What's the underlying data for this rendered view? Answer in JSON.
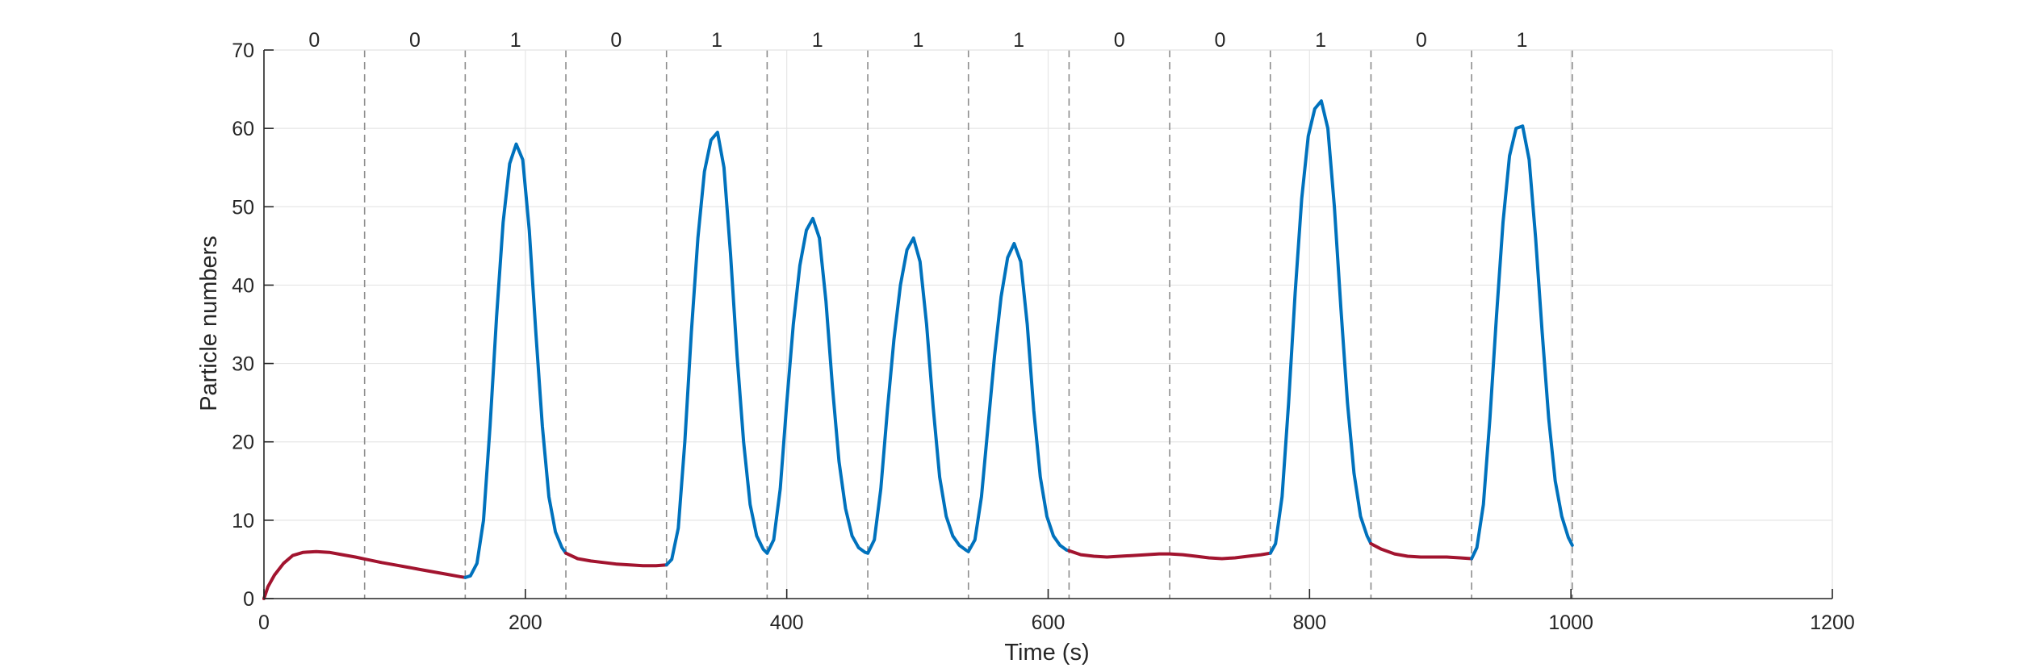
{
  "chart_data": {
    "type": "line",
    "title": "",
    "xlabel": "Time (s)",
    "ylabel": "Particle numbers",
    "xlim": [
      0,
      1200
    ],
    "ylim": [
      0,
      70
    ],
    "xticks": [
      "0",
      "200",
      "400",
      "600",
      "800",
      "1000",
      "1200"
    ],
    "yticks": [
      "0",
      "10",
      "20",
      "30",
      "40",
      "50",
      "60",
      "70"
    ],
    "grid": true,
    "colors": {
      "state_0": "#A2142F",
      "state_1": "#0072BD",
      "grid": "#e6e6e6",
      "boundary": "#8c8c8c",
      "axis": "#262626"
    },
    "interval_width": 77,
    "boundaries": [
      77,
      154,
      231,
      308,
      385,
      462,
      539,
      616,
      693,
      770,
      847,
      924,
      1001
    ],
    "interval_labels": [
      "0",
      "0",
      "1",
      "0",
      "1",
      "1",
      "1",
      "1",
      "0",
      "0",
      "1",
      "0",
      "1"
    ],
    "segments": [
      {
        "state": "0",
        "points": [
          [
            0,
            0
          ],
          [
            3,
            1.5
          ],
          [
            8,
            3
          ],
          [
            15,
            4.5
          ],
          [
            22,
            5.5
          ],
          [
            30,
            5.9
          ],
          [
            40,
            6
          ],
          [
            50,
            5.9
          ],
          [
            60,
            5.6
          ],
          [
            70,
            5.3
          ],
          [
            77,
            5.05
          ],
          [
            90,
            4.6
          ],
          [
            100,
            4.3
          ],
          [
            110,
            4
          ],
          [
            120,
            3.7
          ],
          [
            130,
            3.4
          ],
          [
            140,
            3.1
          ],
          [
            150,
            2.8
          ],
          [
            154,
            2.7
          ]
        ]
      },
      {
        "state": "1",
        "points": [
          [
            154,
            2.7
          ],
          [
            158,
            2.9
          ],
          [
            163,
            4.5
          ],
          [
            168,
            10
          ],
          [
            173,
            22
          ],
          [
            178,
            36
          ],
          [
            183,
            48
          ],
          [
            188,
            55.5
          ],
          [
            193,
            58
          ],
          [
            198,
            56
          ],
          [
            203,
            47
          ],
          [
            208,
            34
          ],
          [
            213,
            22
          ],
          [
            218,
            13
          ],
          [
            223,
            8.5
          ],
          [
            228,
            6.5
          ],
          [
            231,
            5.8
          ]
        ]
      },
      {
        "state": "0",
        "points": [
          [
            231,
            5.8
          ],
          [
            240,
            5.1
          ],
          [
            250,
            4.8
          ],
          [
            260,
            4.6
          ],
          [
            270,
            4.4
          ],
          [
            280,
            4.3
          ],
          [
            290,
            4.2
          ],
          [
            300,
            4.2
          ],
          [
            308,
            4.3
          ]
        ]
      },
      {
        "state": "1",
        "points": [
          [
            308,
            4.3
          ],
          [
            312,
            5
          ],
          [
            317,
            9
          ],
          [
            322,
            20
          ],
          [
            327,
            34
          ],
          [
            332,
            46
          ],
          [
            337,
            54.5
          ],
          [
            342,
            58.5
          ],
          [
            347,
            59.5
          ],
          [
            352,
            55
          ],
          [
            357,
            44
          ],
          [
            362,
            31
          ],
          [
            367,
            20
          ],
          [
            372,
            12
          ],
          [
            377,
            8
          ],
          [
            382,
            6.3
          ],
          [
            385,
            5.8
          ]
        ]
      },
      {
        "state": "1",
        "points": [
          [
            385,
            5.8
          ],
          [
            390,
            7.5
          ],
          [
            395,
            14
          ],
          [
            400,
            25
          ],
          [
            405,
            35
          ],
          [
            410,
            42.5
          ],
          [
            415,
            47
          ],
          [
            420,
            48.5
          ],
          [
            425,
            46
          ],
          [
            430,
            38
          ],
          [
            435,
            27
          ],
          [
            440,
            17.5
          ],
          [
            445,
            11.5
          ],
          [
            450,
            8
          ],
          [
            455,
            6.5
          ],
          [
            460,
            5.9
          ],
          [
            462,
            5.8
          ]
        ]
      },
      {
        "state": "1",
        "points": [
          [
            462,
            5.8
          ],
          [
            467,
            7.5
          ],
          [
            472,
            14
          ],
          [
            477,
            24
          ],
          [
            482,
            33
          ],
          [
            487,
            40
          ],
          [
            492,
            44.5
          ],
          [
            497,
            46
          ],
          [
            502,
            43
          ],
          [
            507,
            35
          ],
          [
            512,
            24.5
          ],
          [
            517,
            15.5
          ],
          [
            522,
            10.5
          ],
          [
            527,
            8
          ],
          [
            532,
            6.8
          ],
          [
            537,
            6.2
          ],
          [
            539,
            6
          ]
        ]
      },
      {
        "state": "1",
        "points": [
          [
            539,
            6
          ],
          [
            544,
            7.5
          ],
          [
            549,
            13
          ],
          [
            554,
            22
          ],
          [
            559,
            31
          ],
          [
            564,
            38.5
          ],
          [
            569,
            43.5
          ],
          [
            574,
            45.3
          ],
          [
            579,
            43
          ],
          [
            584,
            35
          ],
          [
            589,
            24
          ],
          [
            594,
            15.5
          ],
          [
            599,
            10.5
          ],
          [
            604,
            8
          ],
          [
            609,
            6.8
          ],
          [
            614,
            6.2
          ],
          [
            616,
            6.1
          ]
        ]
      },
      {
        "state": "0",
        "points": [
          [
            616,
            6.1
          ],
          [
            625,
            5.6
          ],
          [
            635,
            5.4
          ],
          [
            645,
            5.3
          ],
          [
            655,
            5.4
          ],
          [
            665,
            5.5
          ],
          [
            675,
            5.6
          ],
          [
            685,
            5.7
          ],
          [
            693,
            5.7
          ],
          [
            703,
            5.6
          ],
          [
            713,
            5.4
          ],
          [
            723,
            5.2
          ],
          [
            733,
            5.1
          ],
          [
            743,
            5.2
          ],
          [
            753,
            5.4
          ],
          [
            763,
            5.6
          ],
          [
            770,
            5.8
          ]
        ]
      },
      {
        "state": "1",
        "points": [
          [
            770,
            5.8
          ],
          [
            774,
            7
          ],
          [
            779,
            13
          ],
          [
            784,
            25
          ],
          [
            789,
            39
          ],
          [
            794,
            51
          ],
          [
            799,
            59
          ],
          [
            804,
            62.5
          ],
          [
            809,
            63.5
          ],
          [
            814,
            60
          ],
          [
            819,
            50
          ],
          [
            824,
            37
          ],
          [
            829,
            25
          ],
          [
            834,
            16
          ],
          [
            839,
            10.5
          ],
          [
            844,
            8
          ],
          [
            847,
            7
          ]
        ]
      },
      {
        "state": "0",
        "points": [
          [
            847,
            7
          ],
          [
            855,
            6.3
          ],
          [
            865,
            5.7
          ],
          [
            875,
            5.4
          ],
          [
            885,
            5.3
          ],
          [
            895,
            5.3
          ],
          [
            905,
            5.3
          ],
          [
            915,
            5.2
          ],
          [
            924,
            5.1
          ]
        ]
      },
      {
        "state": "1",
        "points": [
          [
            924,
            5.1
          ],
          [
            928,
            6.5
          ],
          [
            933,
            12
          ],
          [
            938,
            23
          ],
          [
            943,
            36
          ],
          [
            948,
            48
          ],
          [
            953,
            56.5
          ],
          [
            958,
            60
          ],
          [
            963,
            60.3
          ],
          [
            968,
            56
          ],
          [
            973,
            46
          ],
          [
            978,
            34
          ],
          [
            983,
            23
          ],
          [
            988,
            15
          ],
          [
            993,
            10.5
          ],
          [
            998,
            7.8
          ],
          [
            1001,
            6.8
          ]
        ]
      }
    ]
  }
}
